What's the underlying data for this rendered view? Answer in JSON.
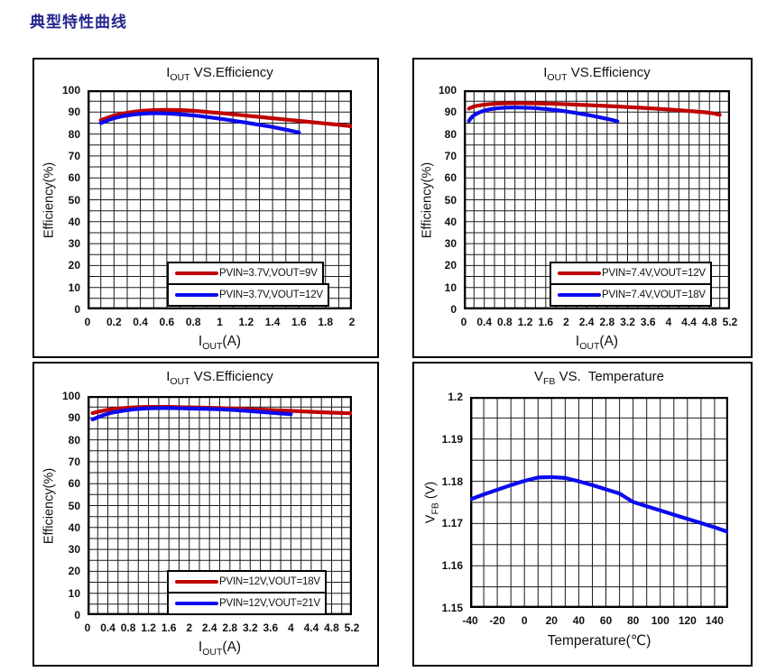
{
  "page": {
    "heading": "典型特性曲线"
  },
  "chart_data": [
    {
      "id": "efficiency-pvin-3v7",
      "type": "line",
      "title": {
        "pre": "I",
        "sub": "OUT",
        "post": " VS.Efficiency"
      },
      "xlabel": {
        "pre": "I",
        "sub": "OUT",
        "post": "(A)"
      },
      "ylabel": {
        "pre": "Efficiency(%)",
        "sub": "",
        "post": ""
      },
      "xlim": [
        0,
        2
      ],
      "ylim": [
        0,
        100
      ],
      "x_minor_step": 0.1,
      "y_minor_step": 5,
      "grid": true,
      "legend_position": "lower right",
      "xticks": {
        "values": [
          0,
          0.2,
          0.4,
          0.6,
          0.8,
          1,
          1.2,
          1.4,
          1.6,
          1.8,
          2
        ],
        "labels": [
          "0",
          "0.2",
          "0.4",
          "0.6",
          "0.8",
          "1",
          "1.2",
          "1.4",
          "1.6",
          "1.8",
          "2"
        ]
      },
      "yticks": {
        "values": [
          0,
          10,
          20,
          30,
          40,
          50,
          60,
          70,
          80,
          90,
          100
        ],
        "labels": [
          "0",
          "10",
          "20",
          "30",
          "40",
          "50",
          "60",
          "70",
          "80",
          "90",
          "100"
        ]
      },
      "series": [
        {
          "name": "PVIN=3.7V,VOUT=9V",
          "color": "#c00000",
          "points": [
            [
              0.1,
              86.3
            ],
            [
              0.2,
              88.4
            ],
            [
              0.3,
              89.7
            ],
            [
              0.4,
              90.5
            ],
            [
              0.5,
              90.9
            ],
            [
              0.6,
              91
            ],
            [
              0.7,
              90.9
            ],
            [
              0.8,
              90.6
            ],
            [
              0.9,
              90.1
            ],
            [
              1,
              89.6
            ],
            [
              1.1,
              89
            ],
            [
              1.2,
              88.4
            ],
            [
              1.3,
              87.8
            ],
            [
              1.4,
              87.2
            ],
            [
              1.5,
              86.6
            ],
            [
              1.6,
              86
            ],
            [
              1.7,
              85.4
            ],
            [
              1.8,
              84.8
            ],
            [
              1.9,
              84.2
            ],
            [
              2,
              83.5
            ]
          ]
        },
        {
          "name": "PVIN=3.7V,VOUT=12V",
          "color": "#0b0bee",
          "points": [
            [
              0.1,
              85
            ],
            [
              0.2,
              87.2
            ],
            [
              0.3,
              88.5
            ],
            [
              0.4,
              89.2
            ],
            [
              0.5,
              89.5
            ],
            [
              0.6,
              89.4
            ],
            [
              0.7,
              89
            ],
            [
              0.8,
              88.5
            ],
            [
              0.9,
              87.8
            ],
            [
              1,
              87
            ],
            [
              1.1,
              86.1
            ],
            [
              1.2,
              85.2
            ],
            [
              1.3,
              84.2
            ],
            [
              1.4,
              83.2
            ],
            [
              1.5,
              82
            ],
            [
              1.6,
              80.7
            ]
          ]
        }
      ]
    },
    {
      "id": "efficiency-pvin-7v4",
      "type": "line",
      "title": {
        "pre": "I",
        "sub": "OUT",
        "post": " VS.Efficiency"
      },
      "xlabel": {
        "pre": "I",
        "sub": "OUT",
        "post": "(A)"
      },
      "ylabel": {
        "pre": "Efficiency(%)",
        "sub": "",
        "post": ""
      },
      "xlim": [
        0,
        5.2
      ],
      "ylim": [
        0,
        100
      ],
      "x_minor_step": 0.2,
      "y_minor_step": 5,
      "grid": true,
      "legend_position": "lower right",
      "xticks": {
        "values": [
          0,
          0.4,
          0.8,
          1.2,
          1.6,
          2,
          2.4,
          2.8,
          3.2,
          3.6,
          4,
          4.4,
          4.8,
          5.2
        ],
        "labels": [
          "0",
          "0.4",
          "0.8",
          "1.2",
          "1.6",
          "2",
          "2.4",
          "2.8",
          "3.2",
          "3.6",
          "4",
          "4.4",
          "4.8",
          "5.2"
        ]
      },
      "yticks": {
        "values": [
          0,
          10,
          20,
          30,
          40,
          50,
          60,
          70,
          80,
          90,
          100
        ],
        "labels": [
          "0",
          "10",
          "20",
          "30",
          "40",
          "50",
          "60",
          "70",
          "80",
          "90",
          "100"
        ]
      },
      "series": [
        {
          "name": "PVIN=7.4V,VOUT=12V",
          "color": "#c00000",
          "points": [
            [
              0.1,
              91.6
            ],
            [
              0.2,
              92.6
            ],
            [
              0.4,
              93.4
            ],
            [
              0.6,
              93.8
            ],
            [
              0.8,
              94
            ],
            [
              1.2,
              94.1
            ],
            [
              1.6,
              93.9
            ],
            [
              2,
              93.6
            ],
            [
              2.4,
              93.2
            ],
            [
              2.8,
              92.8
            ],
            [
              3.2,
              92.3
            ],
            [
              3.6,
              91.8
            ],
            [
              4,
              91.2
            ],
            [
              4.4,
              90.5
            ],
            [
              4.8,
              89.7
            ],
            [
              5,
              88.8
            ]
          ]
        },
        {
          "name": "PVIN=7.4V,VOUT=18V",
          "color": "#0b0bee",
          "points": [
            [
              0.1,
              86
            ],
            [
              0.2,
              88.6
            ],
            [
              0.4,
              90.7
            ],
            [
              0.6,
              91.6
            ],
            [
              0.8,
              92
            ],
            [
              1,
              92.1
            ],
            [
              1.2,
              92
            ],
            [
              1.4,
              91.8
            ],
            [
              1.6,
              91.4
            ],
            [
              1.8,
              90.9
            ],
            [
              2,
              90.3
            ],
            [
              2.2,
              89.6
            ],
            [
              2.4,
              88.8
            ],
            [
              2.6,
              87.9
            ],
            [
              2.8,
              86.9
            ],
            [
              3,
              85.8
            ]
          ]
        }
      ]
    },
    {
      "id": "efficiency-pvin-12v",
      "type": "line",
      "title": {
        "pre": "I",
        "sub": "OUT",
        "post": " VS.Efficiency"
      },
      "xlabel": {
        "pre": "I",
        "sub": "OUT",
        "post": "(A)"
      },
      "ylabel": {
        "pre": "Efficiency(%)",
        "sub": "",
        "post": ""
      },
      "xlim": [
        0,
        5.2
      ],
      "ylim": [
        0,
        100
      ],
      "x_minor_step": 0.2,
      "y_minor_step": 5,
      "grid": true,
      "legend_position": "lower right",
      "xticks": {
        "values": [
          0,
          0.4,
          0.8,
          1.2,
          1.6,
          2,
          2.4,
          2.8,
          3.2,
          3.6,
          4,
          4.4,
          4.8,
          5.2
        ],
        "labels": [
          "0",
          "0.4",
          "0.8",
          "1.2",
          "1.6",
          "2",
          "2.4",
          "2.8",
          "3.2",
          "3.6",
          "4",
          "4.4",
          "4.8",
          "5.2"
        ]
      },
      "yticks": {
        "values": [
          0,
          10,
          20,
          30,
          40,
          50,
          60,
          70,
          80,
          90,
          100
        ],
        "labels": [
          "0",
          "10",
          "20",
          "30",
          "40",
          "50",
          "60",
          "70",
          "80",
          "90",
          "100"
        ]
      },
      "series": [
        {
          "name": "PVIN=12V,VOUT=18V",
          "color": "#c00000",
          "points": [
            [
              0.1,
              92.2
            ],
            [
              0.4,
              93.7
            ],
            [
              0.8,
              94.6
            ],
            [
              1.2,
              95
            ],
            [
              1.6,
              95
            ],
            [
              2,
              94.8
            ],
            [
              2.4,
              94.6
            ],
            [
              2.8,
              94.3
            ],
            [
              3.2,
              94
            ],
            [
              3.6,
              93.6
            ],
            [
              4,
              93.2
            ],
            [
              4.4,
              92.8
            ],
            [
              4.8,
              92.4
            ],
            [
              5.2,
              92.1
            ]
          ]
        },
        {
          "name": "PVIN=12V,VOUT=21V",
          "color": "#0b0bee",
          "points": [
            [
              0.1,
              89.3
            ],
            [
              0.4,
              91.9
            ],
            [
              0.8,
              93.6
            ],
            [
              1.2,
              94.4
            ],
            [
              1.6,
              94.5
            ],
            [
              2,
              94.3
            ],
            [
              2.4,
              94.1
            ],
            [
              2.8,
              93.7
            ],
            [
              3.2,
              93.1
            ],
            [
              3.6,
              92.4
            ],
            [
              3.8,
              92
            ],
            [
              4,
              91.7
            ]
          ]
        }
      ]
    },
    {
      "id": "vfb-vs-temperature",
      "type": "line",
      "title": {
        "pre": "V",
        "sub": "FB",
        "post": " VS.  Temperature"
      },
      "xlabel": {
        "pre": "Temperature(℃)",
        "sub": "",
        "post": ""
      },
      "ylabel": {
        "pre": "V",
        "sub": "FB",
        "post": " (V)"
      },
      "xlim": [
        -40,
        150
      ],
      "ylim": [
        1.15,
        1.2
      ],
      "x_minor_step": 10,
      "y_minor_step": 0.005,
      "grid": true,
      "legend_position": "none",
      "xticks": {
        "values": [
          -40,
          -20,
          0,
          20,
          40,
          60,
          80,
          100,
          120,
          140
        ],
        "labels": [
          "-40",
          "-20",
          "0",
          "20",
          "40",
          "60",
          "80",
          "100",
          "120",
          "140"
        ]
      },
      "yticks": {
        "values": [
          1.15,
          1.16,
          1.17,
          1.18,
          1.19,
          1.2
        ],
        "labels": [
          "1.15",
          "1.16",
          "1.17",
          "1.18",
          "1.19",
          "1.2"
        ]
      },
      "series": [
        {
          "color": "#0b0bee",
          "points": [
            [
              -40,
              1.1757
            ],
            [
              -30,
              1.1769
            ],
            [
              -20,
              1.178
            ],
            [
              -10,
              1.1791
            ],
            [
              0,
              1.1801
            ],
            [
              10,
              1.1809
            ],
            [
              20,
              1.181
            ],
            [
              30,
              1.1808
            ],
            [
              40,
              1.18
            ],
            [
              50,
              1.1791
            ],
            [
              60,
              1.1781
            ],
            [
              70,
              1.1771
            ],
            [
              75,
              1.1761
            ],
            [
              80,
              1.1751
            ],
            [
              90,
              1.1741
            ],
            [
              100,
              1.1731
            ],
            [
              110,
              1.1721
            ],
            [
              120,
              1.1711
            ],
            [
              130,
              1.1701
            ],
            [
              140,
              1.1691
            ],
            [
              150,
              1.168
            ]
          ]
        }
      ]
    }
  ]
}
